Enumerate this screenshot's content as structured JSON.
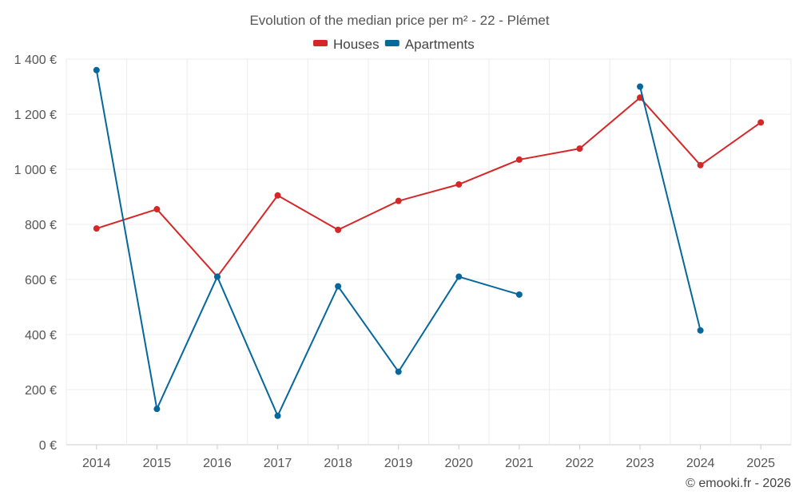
{
  "chart_data": {
    "type": "line",
    "title": "Evolution of the median price per m² - 22 - Plémet",
    "categories": [
      "2014",
      "2015",
      "2016",
      "2017",
      "2018",
      "2019",
      "2020",
      "2021",
      "2022",
      "2023",
      "2024",
      "2025"
    ],
    "ylim": [
      0,
      1400
    ],
    "yticks": [
      0,
      200,
      400,
      600,
      800,
      1000,
      1200,
      1400
    ],
    "ytick_labels": [
      "0 €",
      "200 €",
      "400 €",
      "600 €",
      "800 €",
      "1 000 €",
      "1 200 €",
      "1 400 €"
    ],
    "grid": true,
    "legend_position": "top-center",
    "series": [
      {
        "name": "Houses",
        "color": "#d62728",
        "values": [
          785,
          855,
          610,
          905,
          780,
          885,
          945,
          1035,
          1075,
          1260,
          1015,
          1170
        ]
      },
      {
        "name": "Apartments",
        "color": "#05679c",
        "values": [
          1360,
          130,
          610,
          105,
          575,
          265,
          610,
          545,
          null,
          1300,
          415,
          null
        ]
      }
    ]
  },
  "footer": {
    "credit": "© emooki.fr - 2026"
  }
}
